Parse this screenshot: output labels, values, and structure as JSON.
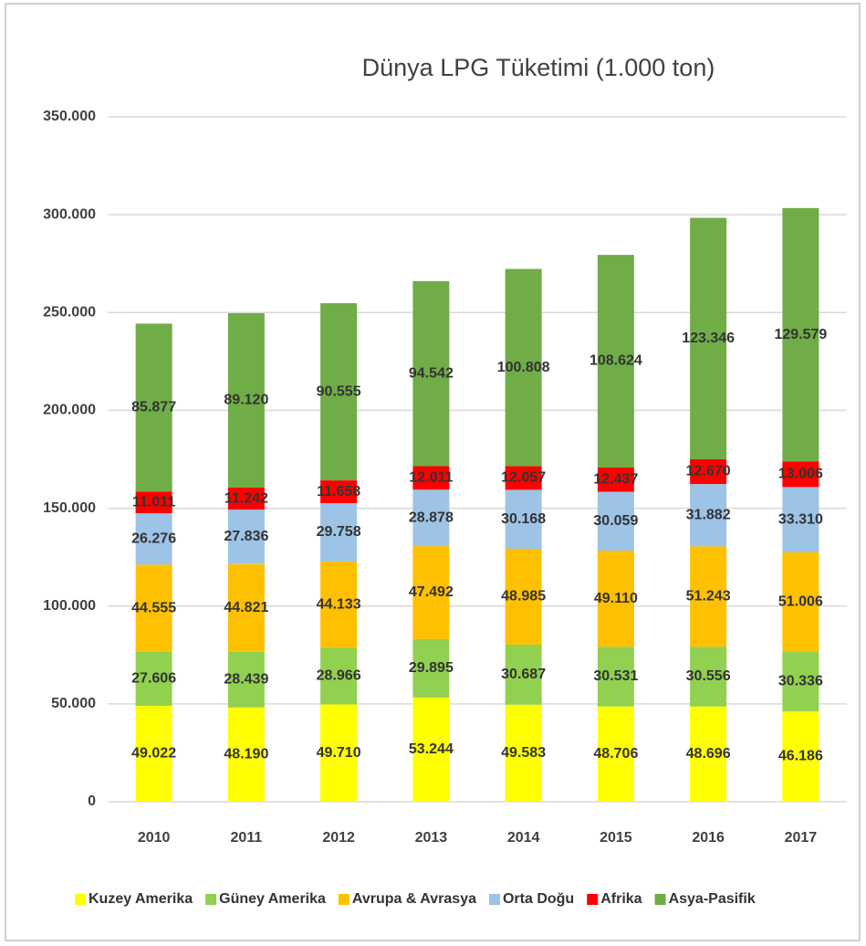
{
  "chart_data": {
    "type": "stacked_bar",
    "title": "Dünya LPG Tüketimi (1.000 ton)",
    "categories": [
      "2010",
      "2011",
      "2012",
      "2013",
      "2014",
      "2015",
      "2016",
      "2017"
    ],
    "series": [
      {
        "name": "Kuzey Amerika",
        "color": "#ffff00",
        "values": [
          49022,
          48190,
          49710,
          53244,
          49583,
          48706,
          48696,
          46186
        ],
        "value_labels": [
          "49.022",
          "48.190",
          "49.710",
          "53.244",
          "49.583",
          "48.706",
          "48.696",
          "46.186"
        ]
      },
      {
        "name": "Güney Amerika",
        "color": "#92d050",
        "values": [
          27606,
          28439,
          28966,
          29895,
          30687,
          30531,
          30556,
          30336
        ],
        "value_labels": [
          "27.606",
          "28.439",
          "28.966",
          "29.895",
          "30.687",
          "30.531",
          "30.556",
          "30.336"
        ]
      },
      {
        "name": "Avrupa & Avrasya",
        "color": "#ffc000",
        "values": [
          44555,
          44821,
          44133,
          47492,
          48985,
          49110,
          51243,
          51006
        ],
        "value_labels": [
          "44.555",
          "44.821",
          "44.133",
          "47.492",
          "48.985",
          "49.110",
          "51.243",
          "51.006"
        ]
      },
      {
        "name": "Orta Doğu",
        "color": "#9dc3e6",
        "values": [
          26276,
          27836,
          29758,
          28878,
          30168,
          30059,
          31882,
          33310
        ],
        "value_labels": [
          "26.276",
          "27.836",
          "29.758",
          "28.878",
          "30.168",
          "30.059",
          "31.882",
          "33.310"
        ]
      },
      {
        "name": "Afrika",
        "color": "#ff0000",
        "values": [
          11011,
          11242,
          11658,
          12011,
          12057,
          12437,
          12670,
          13006
        ],
        "value_labels": [
          "11.011",
          "11.242",
          "11.658",
          "12.011",
          "12.057",
          "12.437",
          "12.670",
          "13.006"
        ]
      },
      {
        "name": "Asya-Pasifik",
        "color": "#70ad47",
        "values": [
          85877,
          89120,
          90555,
          94542,
          100808,
          108624,
          123346,
          129579
        ],
        "value_labels": [
          "85.877",
          "89.120",
          "90.555",
          "94.542",
          "100.808",
          "108.624",
          "123.346",
          "129.579"
        ]
      }
    ],
    "ylim": [
      0,
      350000
    ],
    "yticks": [
      0,
      {
        "value": 50000,
        "label": "50.000"
      },
      {
        "value": 100000,
        "label": "100.000"
      },
      {
        "value": 150000,
        "label": "150.000"
      },
      {
        "value": 200000,
        "label": "200.000"
      },
      {
        "value": 250000,
        "label": "250.000"
      },
      {
        "value": 300000,
        "label": "300.000"
      },
      {
        "value": 350000,
        "label": "350.000"
      }
    ],
    "grid": true
  }
}
